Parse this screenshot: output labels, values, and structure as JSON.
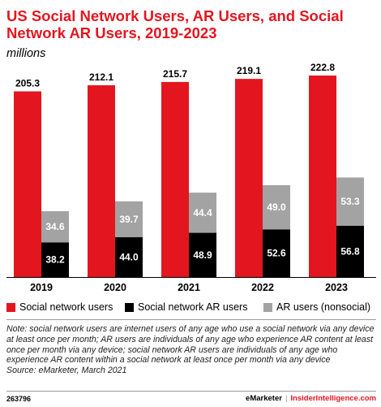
{
  "title": "US Social Network Users, AR Users, and Social Network AR Users, 2019-2023",
  "subtitle": "millions",
  "colors": {
    "red": "#e3161f",
    "black": "#000000",
    "gray": "#a3a3a3"
  },
  "chart_data": {
    "type": "bar",
    "title": "US Social Network Users, AR Users, and Social Network AR Users, 2019-2023",
    "subtitle": "millions",
    "categories": [
      "2019",
      "2020",
      "2021",
      "2022",
      "2023"
    ],
    "series": [
      {
        "name": "Social network users",
        "values": [
          205.3,
          212.1,
          215.7,
          219.1,
          222.8
        ],
        "labels": [
          "205.3",
          "212.1",
          "215.7",
          "219.1",
          "222.8"
        ]
      },
      {
        "name": "Social network AR users",
        "values": [
          38.2,
          44.0,
          48.9,
          52.6,
          56.8
        ],
        "labels": [
          "38.2",
          "44.0",
          "48.9",
          "52.6",
          "56.8"
        ]
      },
      {
        "name": "AR users (nonsocial)",
        "values": [
          34.6,
          39.7,
          44.4,
          49.0,
          53.3
        ],
        "labels": [
          "34.6",
          "39.7",
          "44.4",
          "49.0",
          "53.3"
        ]
      }
    ],
    "stacked_series": [
      "Social network AR users",
      "AR users (nonsocial)"
    ],
    "ylim": [
      0,
      222.8
    ],
    "grid": false,
    "legend_position": "bottom"
  },
  "legend": [
    "Social network users",
    "Social network AR users",
    "AR users (nonsocial)"
  ],
  "note": "Note: social network users are internet users of any age who use a social network via any device at least once per month; AR users are individuals of any age who experience AR content at least once per month via any device; social network AR users are individuals of any age who experience AR content within a social network at least once per month via any device",
  "source": "Source: eMarketer, March 2021",
  "footer": {
    "id": "263796",
    "brand": "eMarketer",
    "separator": "|",
    "site": "InsiderIntelligence.com"
  }
}
